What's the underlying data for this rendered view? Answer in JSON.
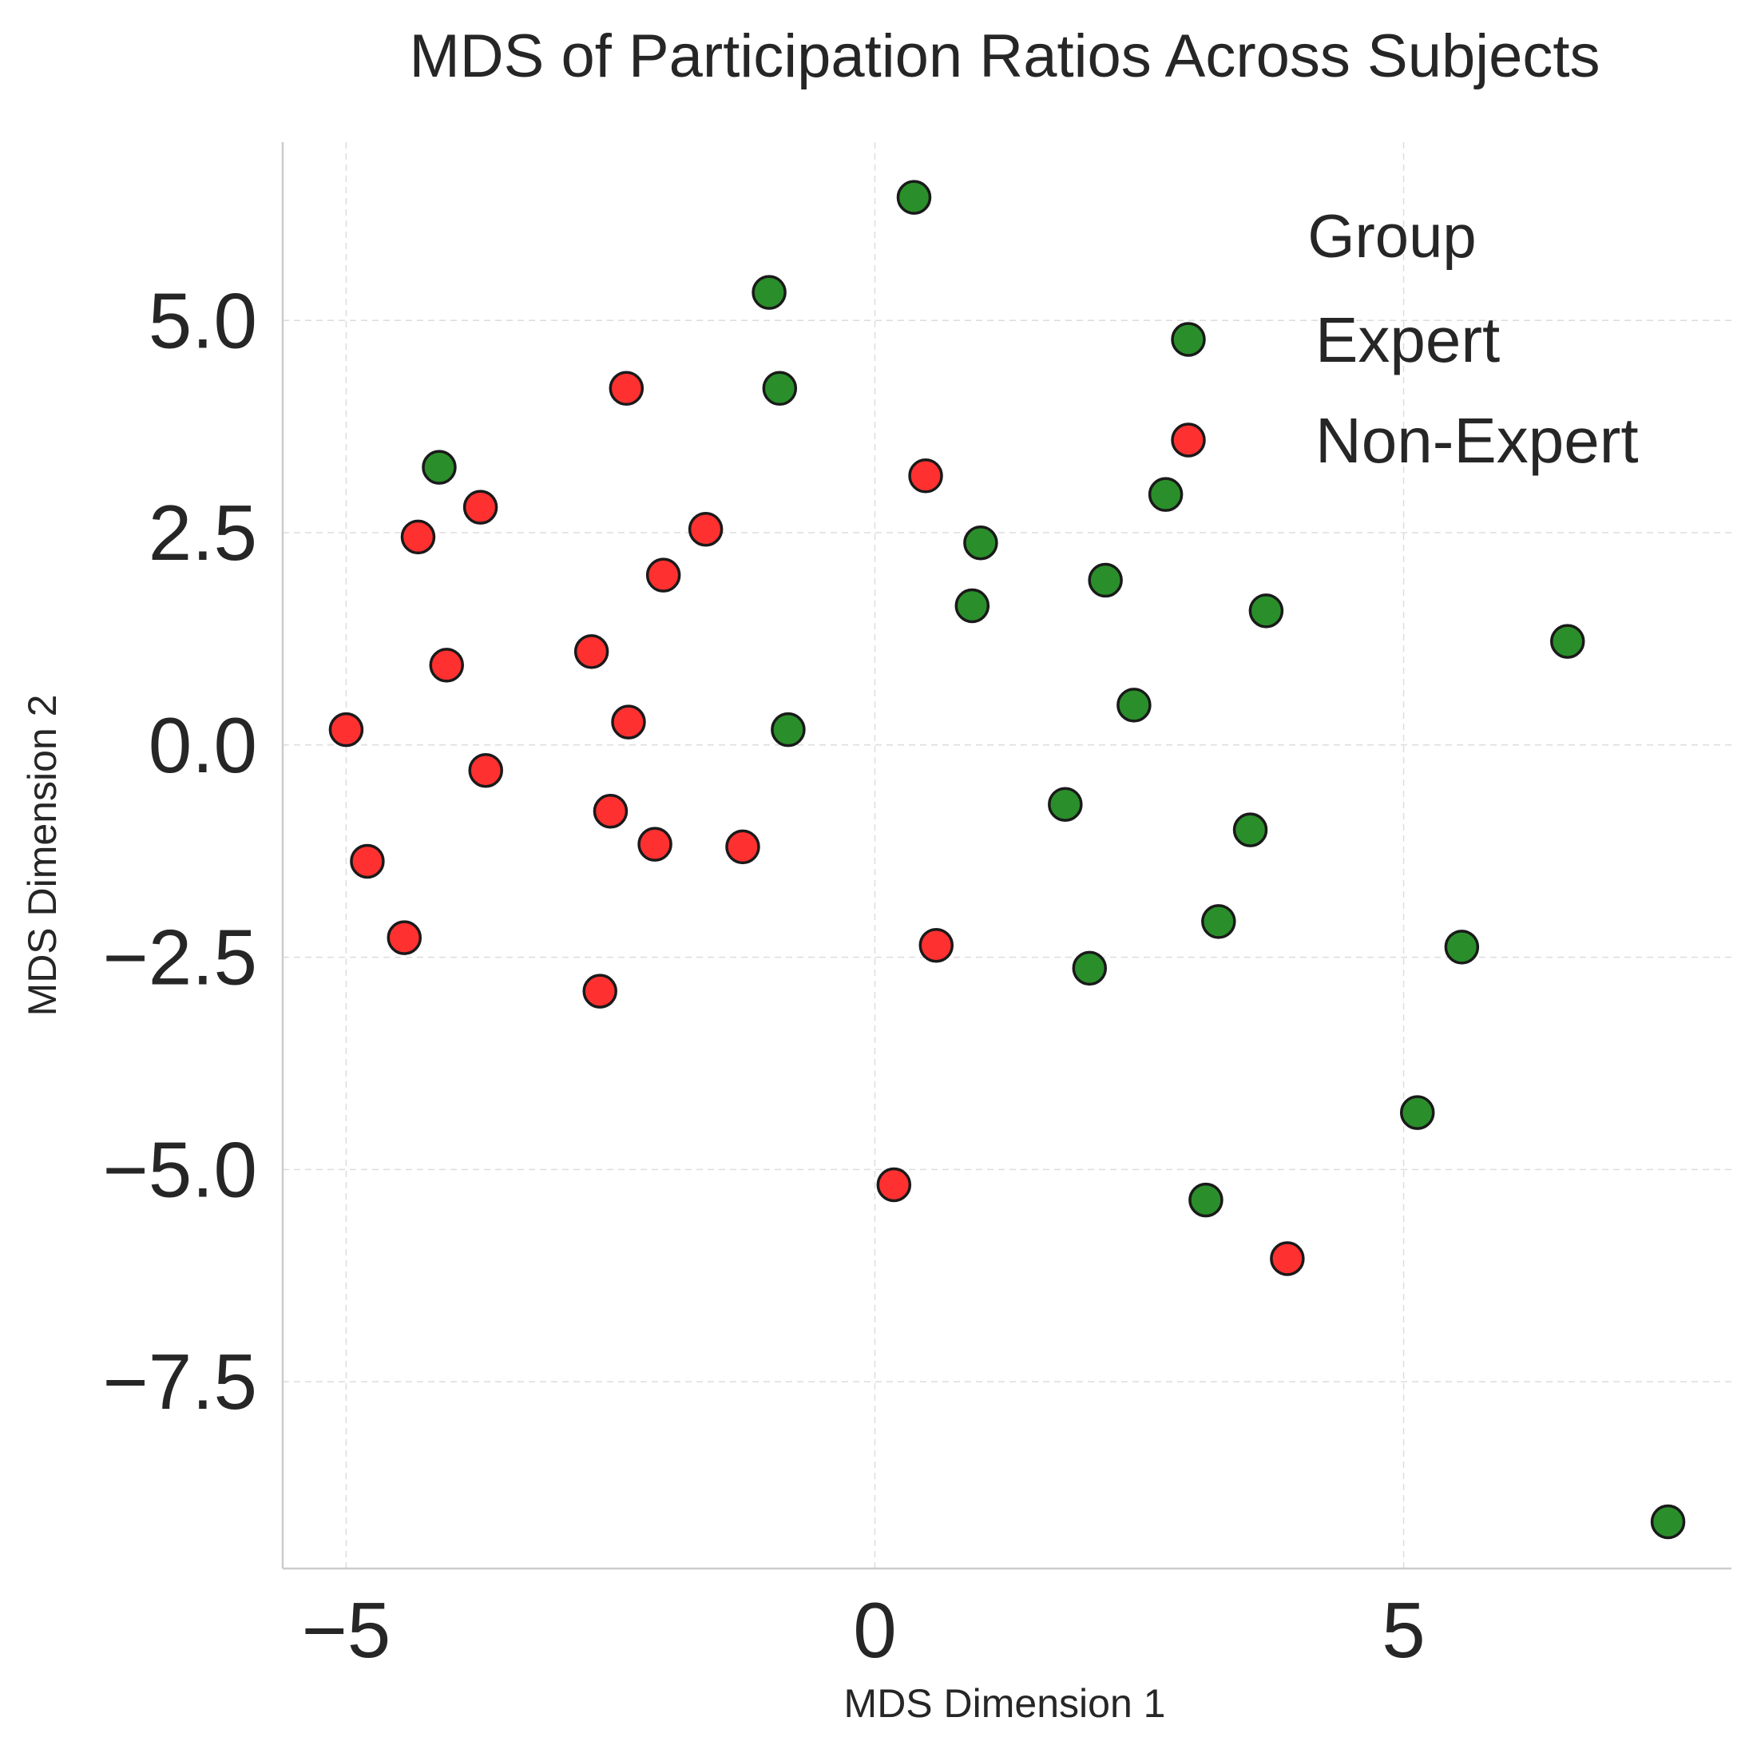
{
  "chart_data": {
    "type": "scatter",
    "title": "MDS of Participation Ratios Across Subjects",
    "xlabel": "MDS Dimension 1",
    "ylabel": "MDS Dimension 2",
    "xlim": [
      -5.6,
      8.1
    ],
    "ylim": [
      -9.7,
      7.1
    ],
    "xticks": [
      -5,
      0,
      5
    ],
    "xtick_labels": [
      "−5",
      "0",
      "5"
    ],
    "yticks": [
      -7.5,
      -5.0,
      -2.5,
      0.0,
      2.5,
      5.0
    ],
    "ytick_labels": [
      "−7.5",
      "−5.0",
      "−2.5",
      "0.0",
      "2.5",
      "5.0"
    ],
    "grid": true,
    "legend": {
      "title": "Group",
      "position": "top-right"
    },
    "series": [
      {
        "name": "Expert",
        "color": "#2a8f2a",
        "points": [
          [
            0.37,
            6.45
          ],
          [
            -1.0,
            5.33
          ],
          [
            -0.9,
            4.2
          ],
          [
            -4.12,
            3.27
          ],
          [
            2.75,
            2.95
          ],
          [
            1.0,
            2.38
          ],
          [
            2.18,
            1.94
          ],
          [
            3.7,
            1.58
          ],
          [
            0.92,
            1.64
          ],
          [
            6.55,
            1.22
          ],
          [
            2.45,
            0.47
          ],
          [
            -0.82,
            0.18
          ],
          [
            1.8,
            -0.7
          ],
          [
            3.55,
            -1.0
          ],
          [
            3.25,
            -2.08
          ],
          [
            2.03,
            -2.63
          ],
          [
            5.55,
            -2.38
          ],
          [
            5.13,
            -4.33
          ],
          [
            3.13,
            -5.36
          ],
          [
            7.5,
            -9.15
          ]
        ]
      },
      {
        "name": "Non-Expert",
        "color": "#ff3030",
        "points": [
          [
            -2.35,
            4.2
          ],
          [
            0.48,
            3.17
          ],
          [
            -3.73,
            2.8
          ],
          [
            -4.32,
            2.45
          ],
          [
            -1.6,
            2.54
          ],
          [
            -2.0,
            2.0
          ],
          [
            -2.68,
            1.1
          ],
          [
            -4.05,
            0.94
          ],
          [
            -5.0,
            0.18
          ],
          [
            -2.33,
            0.27
          ],
          [
            -3.68,
            -0.3
          ],
          [
            -2.5,
            -0.78
          ],
          [
            -2.08,
            -1.17
          ],
          [
            -1.25,
            -1.2
          ],
          [
            -4.8,
            -1.37
          ],
          [
            -4.45,
            -2.27
          ],
          [
            0.58,
            -2.36
          ],
          [
            -2.6,
            -2.9
          ],
          [
            0.18,
            -5.18
          ],
          [
            3.9,
            -6.05
          ]
        ]
      }
    ]
  }
}
